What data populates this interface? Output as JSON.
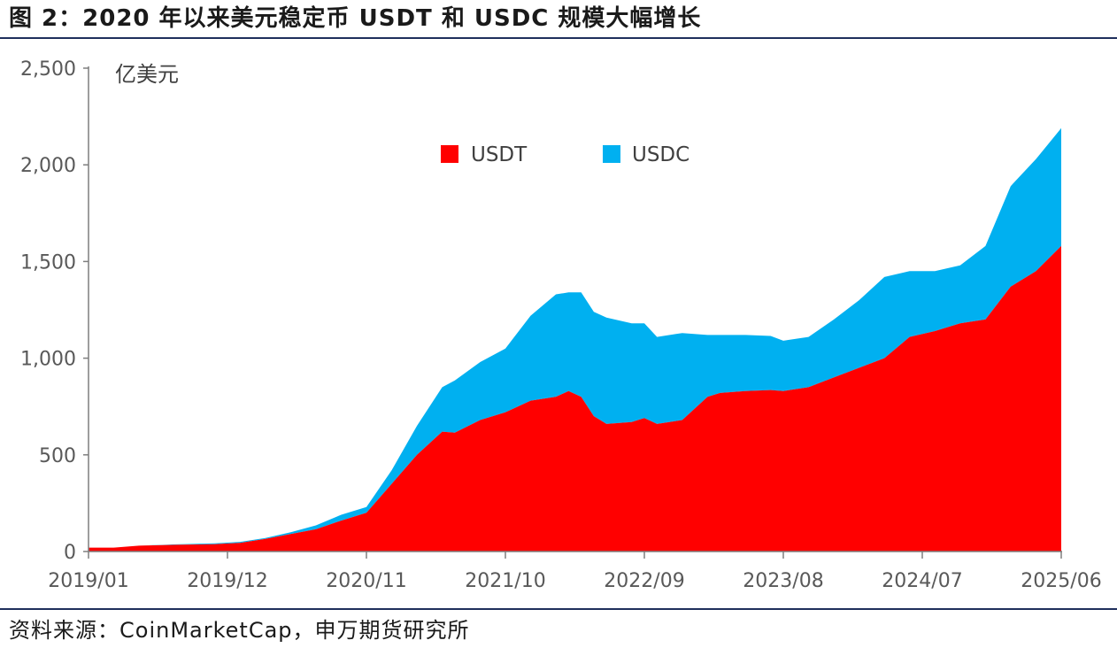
{
  "header": {
    "title": "图 2：2020 年以来美元稳定币 USDT 和 USDC 规模大幅增长"
  },
  "footer": {
    "source": "资料来源：CoinMarketCap，申万期货研究所"
  },
  "colors": {
    "usdt": "#ff0000",
    "usdc": "#00b0f0",
    "axis": "#7f7f7f",
    "rule": "#1f2f5c"
  },
  "chart_data": {
    "type": "area",
    "stacked": true,
    "ylabel": "亿美元",
    "xlabel": "",
    "ylim": [
      0,
      2500
    ],
    "yticks": [
      0,
      500,
      1000,
      1500,
      2000,
      2500
    ],
    "ytick_labels": [
      "0",
      "500",
      "1,000",
      "1,500",
      "2,000",
      "2,500"
    ],
    "x_range": [
      "2019-01",
      "2025-06"
    ],
    "xticks": [
      "2019/01",
      "2019/12",
      "2020/11",
      "2021/10",
      "2022/09",
      "2023/08",
      "2024/07",
      "2025/06"
    ],
    "grid": false,
    "legend_position": "top-center",
    "x": [
      "2019-01",
      "2019-03",
      "2019-05",
      "2019-08",
      "2019-11",
      "2020-01",
      "2020-03",
      "2020-05",
      "2020-07",
      "2020-09",
      "2020-11",
      "2021-01",
      "2021-03",
      "2021-05",
      "2021-06",
      "2021-08",
      "2021-10",
      "2021-12",
      "2022-02",
      "2022-03",
      "2022-04",
      "2022-05",
      "2022-06",
      "2022-08",
      "2022-09",
      "2022-10",
      "2022-12",
      "2023-02",
      "2023-03",
      "2023-05",
      "2023-07",
      "2023-08",
      "2023-10",
      "2023-12",
      "2024-02",
      "2024-04",
      "2024-06",
      "2024-08",
      "2024-10",
      "2024-12",
      "2025-02",
      "2025-04",
      "2025-06"
    ],
    "series": [
      {
        "name": "USDT",
        "values": [
          20,
          20,
          30,
          35,
          38,
          45,
          65,
          90,
          115,
          160,
          200,
          350,
          500,
          620,
          615,
          680,
          720,
          780,
          800,
          830,
          800,
          700,
          660,
          670,
          690,
          660,
          680,
          800,
          820,
          830,
          835,
          830,
          850,
          900,
          950,
          1000,
          1110,
          1140,
          1180,
          1200,
          1370,
          1450,
          1580
        ]
      },
      {
        "name": "USDC",
        "values": [
          0,
          0,
          0,
          2,
          4,
          5,
          5,
          10,
          20,
          30,
          30,
          70,
          150,
          230,
          270,
          300,
          330,
          440,
          530,
          510,
          540,
          540,
          550,
          510,
          490,
          450,
          450,
          320,
          300,
          290,
          280,
          260,
          260,
          300,
          350,
          420,
          340,
          310,
          300,
          380,
          520,
          580,
          610
        ]
      }
    ]
  }
}
